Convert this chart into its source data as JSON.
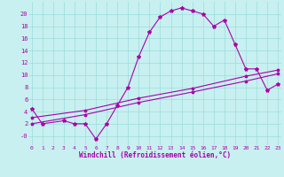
{
  "xlabel": "Windchill (Refroidissement éolien,°C)",
  "bg_color": "#c8f0f0",
  "line_color": "#aa00aa",
  "grid_color": "#99dddd",
  "curve1_x": [
    0,
    1,
    3,
    4,
    5,
    6,
    7,
    8,
    9,
    10,
    11,
    12,
    13,
    14,
    15,
    16,
    17,
    18,
    19,
    20,
    21,
    22,
    23
  ],
  "curve1_y": [
    4.5,
    2.0,
    2.5,
    2.0,
    2.0,
    -0.5,
    2.0,
    5.0,
    8.0,
    13.0,
    17.0,
    19.5,
    20.5,
    21.0,
    20.5,
    20.0,
    18.0,
    19.0,
    15.0,
    11.0,
    11.0,
    7.5,
    8.5
  ],
  "curve2_x": [
    0,
    5,
    10,
    15,
    20,
    23
  ],
  "curve2_y": [
    3.0,
    4.2,
    6.2,
    7.8,
    9.8,
    10.8
  ],
  "curve3_x": [
    0,
    5,
    10,
    15,
    20,
    23
  ],
  "curve3_y": [
    2.0,
    3.5,
    5.5,
    7.2,
    9.0,
    10.2
  ],
  "ylim": [
    -1.5,
    22
  ],
  "xlim": [
    -0.3,
    23.3
  ],
  "yticks": [
    0,
    2,
    4,
    6,
    8,
    10,
    12,
    14,
    16,
    18,
    20
  ],
  "ytick_labels": [
    "-0",
    "2",
    "4",
    "6",
    "8",
    "10",
    "12",
    "14",
    "16",
    "18",
    "20"
  ],
  "xticks": [
    0,
    1,
    2,
    3,
    4,
    5,
    6,
    7,
    8,
    9,
    10,
    11,
    12,
    13,
    14,
    15,
    16,
    17,
    18,
    19,
    20,
    21,
    22,
    23
  ]
}
